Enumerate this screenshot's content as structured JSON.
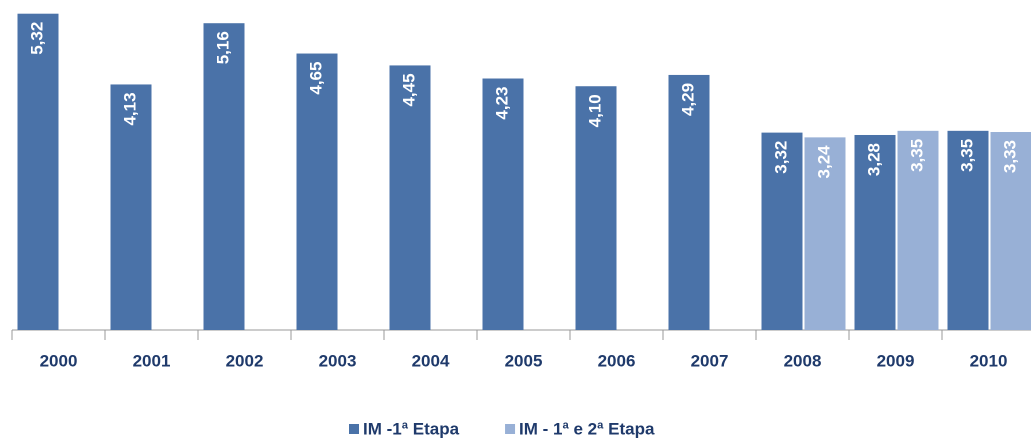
{
  "chart_data": {
    "type": "bar",
    "categories": [
      "2000",
      "2001",
      "2002",
      "2003",
      "2004",
      "2005",
      "2006",
      "2007",
      "2008",
      "2009",
      "2010"
    ],
    "series": [
      {
        "name": "IM -1ª Etapa",
        "color": "#4a72a8",
        "values": [
          5.32,
          4.13,
          5.16,
          4.65,
          4.45,
          4.23,
          4.1,
          4.29,
          3.32,
          3.28,
          3.35
        ],
        "value_labels": [
          "5,32",
          "4,13",
          "5,16",
          "4,65",
          "4,45",
          "4,23",
          "4,10",
          "4,29",
          "3,32",
          "3,28",
          "3,35"
        ]
      },
      {
        "name": "IM - 1ª e 2ª Etapa",
        "color": "#98b0d6",
        "values": [
          null,
          null,
          null,
          null,
          null,
          null,
          null,
          null,
          3.24,
          3.35,
          3.33
        ],
        "value_labels": [
          null,
          null,
          null,
          null,
          null,
          null,
          null,
          null,
          "3,24",
          "3,35",
          "3,33"
        ]
      }
    ],
    "ylim": [
      0,
      5.5
    ],
    "legend": "bottom"
  }
}
